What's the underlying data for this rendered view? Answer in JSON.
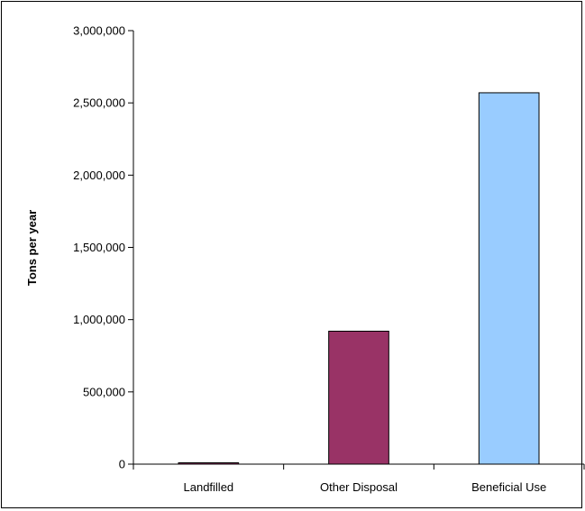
{
  "chart_data": {
    "type": "bar",
    "title": "",
    "xlabel": "",
    "ylabel": "Tons per year",
    "categories": [
      "Landfilled",
      "Other Disposal",
      "Beneficial Use"
    ],
    "values": [
      4000,
      920000,
      2570000
    ],
    "ylim": [
      0,
      3000000
    ],
    "yticks": [
      0,
      500000,
      1000000,
      1500000,
      2000000,
      2500000,
      3000000
    ],
    "ytick_labels": [
      "0",
      "500,000",
      "1,000,000",
      "1,500,000",
      "2,000,000",
      "2,500,000",
      "3,000,000"
    ],
    "bar_colors": [
      "#993366",
      "#993366",
      "#99CCFF"
    ],
    "grid": false,
    "legend": "none"
  }
}
